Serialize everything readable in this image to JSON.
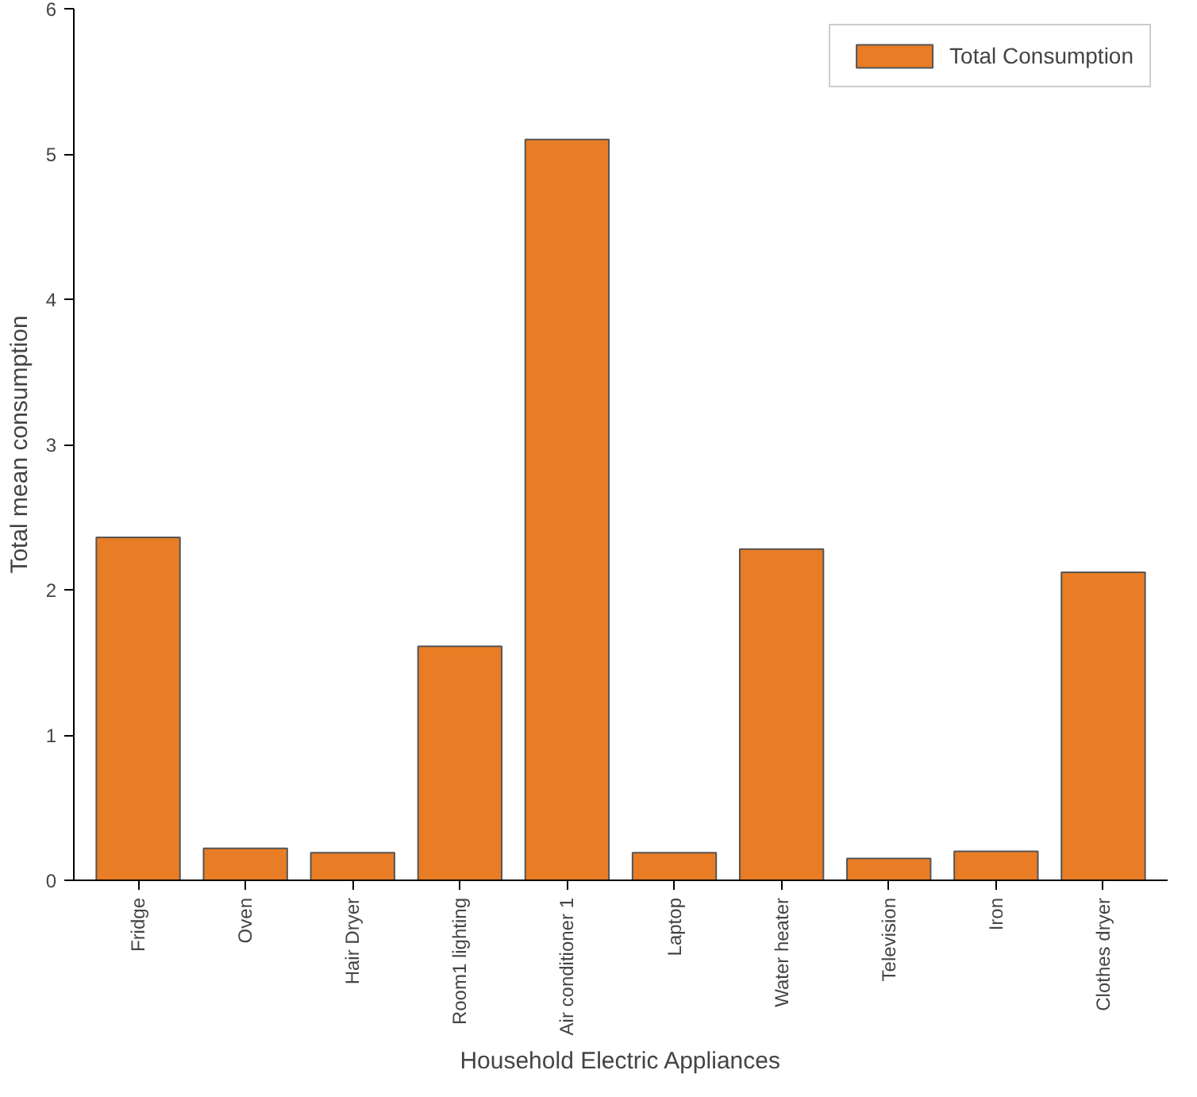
{
  "chart_data": {
    "type": "bar",
    "xlabel": "Household Electric Appliances",
    "ylabel": "Total mean consumption",
    "categories": [
      "Fridge",
      "Oven",
      "Hair Dryer",
      "Room1 lighting",
      "Air conditioner 1",
      "Laptop",
      "Water heater",
      "Television",
      "Iron",
      "Clothes dryer"
    ],
    "series": [
      {
        "name": "Total Consumption",
        "color": "#e87d25",
        "values": [
          2.36,
          0.22,
          0.19,
          1.61,
          5.1,
          0.19,
          2.28,
          0.15,
          0.2,
          2.12
        ]
      }
    ],
    "ylim": [
      0,
      6
    ],
    "yticks": [
      0,
      1,
      2,
      3,
      4,
      5,
      6
    ],
    "grid": false,
    "legend": "top right"
  }
}
